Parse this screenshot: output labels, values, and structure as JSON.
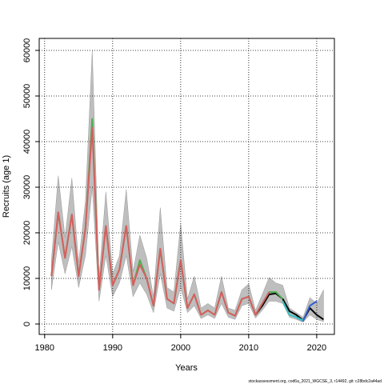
{
  "chart_data": {
    "type": "line",
    "x_label": "Years",
    "y_label": "Recruits (age 1)",
    "footer": "stockassessment.org, cod6a_2021_WGCSE_3, r14492, git: c28bdc2a44ad",
    "x": [
      1981,
      1982,
      1983,
      1984,
      1985,
      1986,
      1987,
      1988,
      1989,
      1990,
      1991,
      1992,
      1993,
      1994,
      1995,
      1996,
      1997,
      1998,
      1999,
      2000,
      2001,
      2002,
      2003,
      2004,
      2005,
      2006,
      2007,
      2008,
      2009,
      2010,
      2011,
      2012,
      2013,
      2014,
      2015,
      2016,
      2017,
      2018,
      2019,
      2020,
      2021
    ],
    "band": {
      "color": "#bebebe",
      "upper": [
        14000,
        32500,
        19000,
        32000,
        13500,
        27000,
        60000,
        10000,
        29000,
        11000,
        15000,
        29500,
        11500,
        19500,
        14500,
        6000,
        25500,
        8000,
        7000,
        22000,
        5500,
        10500,
        3500,
        4500,
        3500,
        10500,
        3500,
        3000,
        7500,
        8800,
        3000,
        6500,
        10200,
        9000,
        8500,
        3500,
        2500,
        1500,
        5800,
        4500,
        7500
      ],
      "lower": [
        7500,
        18000,
        11000,
        17000,
        8000,
        15000,
        30000,
        5000,
        15000,
        6000,
        9000,
        15000,
        6000,
        9000,
        6500,
        2500,
        11000,
        3500,
        2800,
        8000,
        2500,
        4000,
        1200,
        2000,
        1200,
        4500,
        1500,
        1000,
        4000,
        4500,
        1300,
        3000,
        5000,
        5000,
        4500,
        1500,
        1000,
        400,
        2000,
        1000,
        500
      ]
    },
    "series": [
      {
        "color": "#000000",
        "values": [
          null,
          null,
          null,
          null,
          null,
          null,
          null,
          null,
          null,
          null,
          null,
          null,
          null,
          null,
          null,
          null,
          null,
          null,
          null,
          null,
          null,
          null,
          null,
          null,
          null,
          null,
          null,
          null,
          null,
          null,
          2000,
          4000,
          6500,
          6700,
          5500,
          2800,
          2000,
          800,
          3500,
          2000,
          1000
        ]
      },
      {
        "color": "#2f5fd0",
        "values": [
          null,
          null,
          null,
          null,
          null,
          null,
          null,
          null,
          null,
          null,
          null,
          null,
          null,
          null,
          null,
          null,
          null,
          null,
          null,
          null,
          null,
          null,
          null,
          null,
          null,
          null,
          null,
          null,
          null,
          null,
          null,
          null,
          null,
          null,
          null,
          null,
          1500,
          700,
          4000,
          5000,
          null
        ]
      },
      {
        "color": "#33c3c3",
        "values": [
          null,
          null,
          null,
          null,
          null,
          null,
          null,
          null,
          null,
          null,
          null,
          null,
          null,
          null,
          null,
          null,
          null,
          null,
          null,
          null,
          null,
          null,
          null,
          null,
          null,
          null,
          null,
          null,
          null,
          null,
          null,
          null,
          null,
          null,
          5000,
          2000,
          1500,
          800,
          null,
          null,
          null
        ]
      },
      {
        "color": "#4caf50",
        "values": [
          10500,
          24500,
          14500,
          24000,
          10500,
          21000,
          45000,
          7500,
          21500,
          8500,
          12000,
          21500,
          8500,
          14000,
          10000,
          4000,
          16500,
          5500,
          4500,
          14000,
          3500,
          6500,
          2000,
          3000,
          2000,
          7000,
          2500,
          1800,
          5500,
          6000,
          2000,
          4500,
          7000,
          7000,
          5500,
          null,
          null,
          null,
          null,
          null,
          null
        ]
      },
      {
        "color": "#d65f5f",
        "values": [
          10500,
          24500,
          14500,
          24000,
          10500,
          21000,
          43000,
          7500,
          21500,
          8500,
          12000,
          21500,
          8500,
          13000,
          10000,
          4000,
          16500,
          5500,
          4500,
          14000,
          3500,
          6500,
          2000,
          3000,
          2000,
          7000,
          2500,
          1800,
          5500,
          6000,
          2000,
          4500,
          7000,
          null,
          null,
          null,
          null,
          null,
          null,
          null,
          null
        ]
      }
    ],
    "xlim": [
      1979.2,
      2022.6
    ],
    "ylim": [
      -2280,
      62630
    ],
    "xticks": [
      1980,
      1990,
      2000,
      2010,
      2020
    ],
    "yticks": [
      0,
      10000,
      20000,
      30000,
      40000,
      50000,
      60000
    ],
    "grid": true
  }
}
